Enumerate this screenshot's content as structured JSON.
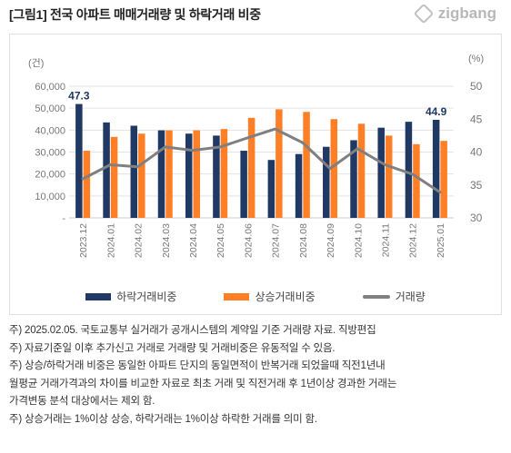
{
  "header": {
    "title": "[그림1] 전국 아파트 매매거래량 및 하락거래 비중",
    "logo_text": "zigbang"
  },
  "chart_data": {
    "type": "bar",
    "left_unit": "(건)",
    "right_unit": "(%)",
    "categories": [
      "2023.12",
      "2024.01",
      "2024.02",
      "2024.03",
      "2024.04",
      "2024.05",
      "2024.06",
      "2024.07",
      "2024.08",
      "2024.09",
      "2024.10",
      "2024.11",
      "2024.12",
      "2025.01"
    ],
    "left_axis": {
      "ylim": [
        0,
        60000
      ],
      "ticks": [
        "-",
        "10,000",
        "20,000",
        "30,000",
        "40,000",
        "50,000",
        "60,000"
      ]
    },
    "right_axis": {
      "ylim": [
        30,
        50
      ],
      "ticks": [
        "30",
        "35",
        "40",
        "45",
        "50"
      ]
    },
    "series": [
      {
        "name": "하락거래비중",
        "axis": "right",
        "kind": "bar",
        "color": "#1f3864",
        "values": [
          47.3,
          44.5,
          44.0,
          43.3,
          42.8,
          42.5,
          40.2,
          38.8,
          39.7,
          40.8,
          41.8,
          43.7,
          44.6,
          44.9
        ]
      },
      {
        "name": "상승거래비중",
        "axis": "right",
        "kind": "bar",
        "color": "#ff7f27",
        "values": [
          40.2,
          42.3,
          42.8,
          43.3,
          43.3,
          43.5,
          45.2,
          46.5,
          46.1,
          45.0,
          44.3,
          42.5,
          41.2,
          41.7
        ]
      },
      {
        "name": "거래량",
        "axis": "left",
        "kind": "line",
        "color": "#808080",
        "values": [
          17800,
          24200,
          23300,
          32300,
          30800,
          32300,
          36500,
          40500,
          34300,
          22500,
          31500,
          24200,
          19900,
          11700
        ]
      }
    ],
    "data_labels": [
      {
        "series": 0,
        "index": 0,
        "text": "47.3"
      },
      {
        "series": 0,
        "index": 13,
        "text": "44.9"
      }
    ],
    "grid": true,
    "legend": "bottom"
  },
  "notes": [
    "주) 2025.02.05. 국토교통부 실거래가 공개시스템의 계약일 기준 거래량  자료. 직방편집",
    "주) 자료기준일 이후 추가신고 거래로 거래량 및 거래비중은 유동적일 수 있음.",
    "주) 상승/하락거래 비중은 동일한 아파트 단지의 동일면적이 반복거래 되었을때 직전1년내",
    "월평균 거래가격과의 차이를 비교한 자료로 최초 거래 및 직전거래 후 1년이상 경과한 거래는",
    "가격변동 분석 대상에서는 제외 함.",
    "주) 상승거래는 1%이상 상승, 하락거래는 1%이상 하락한 거래를 의미 함."
  ]
}
